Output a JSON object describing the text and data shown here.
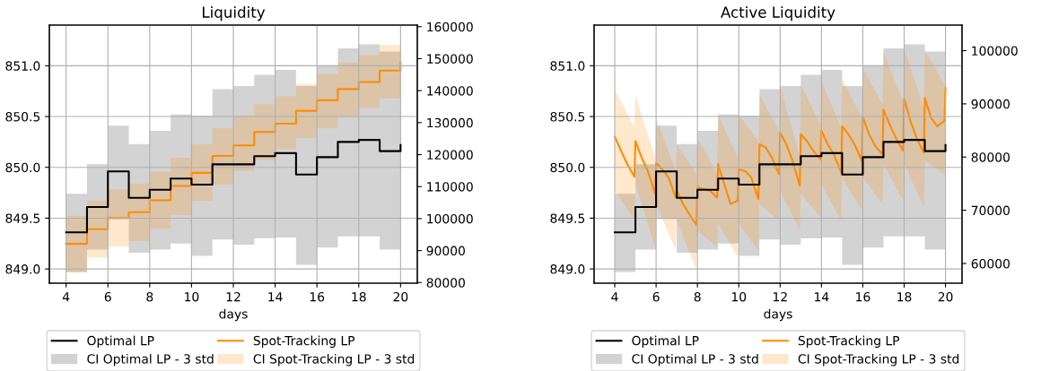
{
  "chart_data": [
    {
      "type": "step",
      "title": "Liquidity",
      "xlabel": "days",
      "xlim": [
        3.2,
        20.8
      ],
      "xticks": [
        4,
        6,
        8,
        10,
        12,
        14,
        16,
        18,
        20
      ],
      "ylim": [
        848.86,
        851.4
      ],
      "yticks": [
        {
          "value": 849,
          "label": "849.0"
        },
        {
          "value": 849.5,
          "label": "849.5"
        },
        {
          "value": 850,
          "label": "850.0"
        },
        {
          "value": 850.5,
          "label": "850.5"
        },
        {
          "value": 851,
          "label": "851.0"
        }
      ],
      "y2lim": [
        79800,
        160500
      ],
      "y2ticks": [
        80000,
        90000,
        100000,
        110000,
        120000,
        130000,
        140000,
        150000,
        160000
      ],
      "grid": true,
      "legend": "bottom",
      "series": [
        {
          "name": "Optimal LP",
          "axis": "y",
          "color": "#000000",
          "x": [
            4,
            5,
            6,
            7,
            8,
            9,
            10,
            11,
            12,
            13,
            14,
            15,
            16,
            17,
            18,
            19,
            20
          ],
          "values": [
            849.36,
            849.61,
            849.96,
            849.7,
            849.78,
            849.89,
            849.83,
            850.03,
            850.03,
            850.11,
            850.14,
            849.93,
            850.1,
            850.25,
            850.27,
            850.16,
            850.22
          ]
        },
        {
          "name": "CI Optimal LP - 3 std",
          "axis": "y",
          "color": "#808080",
          "x": [
            4,
            5,
            6,
            7,
            8,
            9,
            10,
            11,
            12,
            13,
            14,
            15,
            16,
            17,
            18,
            19,
            20
          ],
          "values": [
            null,
            null,
            null,
            null,
            null,
            null,
            null,
            null,
            null,
            null,
            null,
            null,
            null,
            null,
            null,
            null,
            null
          ],
          "lower": [
            848.97,
            849.19,
            849.49,
            849.16,
            849.19,
            849.25,
            849.13,
            849.29,
            849.24,
            849.3,
            849.31,
            849.04,
            849.21,
            849.32,
            849.32,
            849.19,
            849.19
          ],
          "upper": [
            849.74,
            850.03,
            850.41,
            850.23,
            850.36,
            850.52,
            850.51,
            850.77,
            850.8,
            850.91,
            850.96,
            850.8,
            851.0,
            851.17,
            851.21,
            851.14,
            851.14
          ]
        },
        {
          "name": "Spot-Tracking LP",
          "axis": "y2",
          "color": "#ff8c00",
          "x": [
            4,
            5,
            6,
            7,
            8,
            9,
            10,
            11,
            12,
            13,
            14,
            15,
            16,
            17,
            18,
            19,
            20
          ],
          "values": [
            92100,
            96700,
            100200,
            102000,
            105700,
            110200,
            114300,
            119600,
            122900,
            127100,
            129700,
            133700,
            137000,
            140500,
            142700,
            146300,
            148800
          ]
        },
        {
          "name": "CI Spot-Tracking LP - 3 std",
          "axis": "y2",
          "color": "#ff8c00",
          "x": [
            4,
            5,
            6,
            7,
            8,
            9,
            10,
            11,
            12,
            13,
            14,
            15,
            16,
            17,
            18,
            19,
            20
          ],
          "values": [
            null,
            null,
            null,
            null,
            null,
            null,
            null,
            null,
            null,
            null,
            null,
            null,
            null,
            null,
            null,
            null,
            null
          ],
          "lower": [
            83100,
            87800,
            91200,
            93000,
            96800,
            101100,
            105500,
            110600,
            114900,
            118300,
            121700,
            125200,
            128200,
            131800,
            134600,
            137600,
            137600
          ],
          "upper": [
            100900,
            105600,
            109100,
            111000,
            114600,
            119000,
            123200,
            128200,
            132300,
            135700,
            138200,
            142100,
            145200,
            148700,
            151100,
            154300,
            156400
          ]
        }
      ]
    },
    {
      "type": "step",
      "title": "Active Liquidity",
      "xlabel": "days",
      "xlim": [
        3.0,
        20.8
      ],
      "xticks": [
        4,
        6,
        8,
        10,
        12,
        14,
        16,
        18,
        20
      ],
      "ylim": [
        848.86,
        851.4
      ],
      "yticks": [
        {
          "value": 849,
          "label": "849.0"
        },
        {
          "value": 849.5,
          "label": "849.5"
        },
        {
          "value": 850,
          "label": "850.0"
        },
        {
          "value": 850.5,
          "label": "850.5"
        },
        {
          "value": 851,
          "label": "851.0"
        }
      ],
      "y2lim": [
        56300,
        104800
      ],
      "y2ticks": [
        60000,
        70000,
        80000,
        90000,
        100000
      ],
      "grid": true,
      "legend": "bottom",
      "series": [
        {
          "name": "Optimal LP",
          "axis": "y",
          "color": "#000000",
          "x": [
            4,
            5,
            6,
            7,
            8,
            9,
            10,
            11,
            12,
            13,
            14,
            15,
            16,
            17,
            18,
            19,
            20
          ],
          "values": [
            849.36,
            849.61,
            849.96,
            849.7,
            849.78,
            849.89,
            849.83,
            850.03,
            850.03,
            850.11,
            850.14,
            849.93,
            850.1,
            850.25,
            850.27,
            850.16,
            850.22
          ]
        },
        {
          "name": "CI Optimal LP - 3 std",
          "axis": "y",
          "color": "#808080",
          "x": [
            4,
            5,
            6,
            7,
            8,
            9,
            10,
            11,
            12,
            13,
            14,
            15,
            16,
            17,
            18,
            19,
            20
          ],
          "values": [
            null,
            null,
            null,
            null,
            null,
            null,
            null,
            null,
            null,
            null,
            null,
            null,
            null,
            null,
            null,
            null,
            null
          ],
          "lower": [
            848.97,
            849.19,
            849.49,
            849.16,
            849.19,
            849.25,
            849.13,
            849.29,
            849.24,
            849.3,
            849.31,
            849.04,
            849.21,
            849.32,
            849.32,
            849.19,
            849.19
          ],
          "upper": [
            849.74,
            850.03,
            850.41,
            850.23,
            850.36,
            850.52,
            850.51,
            850.77,
            850.8,
            850.91,
            850.96,
            850.8,
            851.0,
            851.17,
            851.21,
            851.14,
            851.14
          ]
        },
        {
          "name": "Spot-Tracking LP",
          "type": "line",
          "axis": "y2",
          "color": "#ff8c00",
          "x": [
            4,
            4.3,
            4.6,
            4.95,
            5,
            5.3,
            5.6,
            5.95,
            6,
            6.3,
            6.6,
            6.95,
            7,
            7.3,
            7.6,
            7.95,
            8,
            8.3,
            8.6,
            8.95,
            9,
            9.3,
            9.6,
            9.95,
            10,
            10.3,
            10.6,
            10.95,
            11,
            11.3,
            11.6,
            11.95,
            12,
            12.3,
            12.6,
            12.95,
            13,
            13.3,
            13.6,
            13.95,
            14,
            14.3,
            14.6,
            14.95,
            15,
            15.3,
            15.6,
            15.95,
            16,
            16.3,
            16.6,
            16.95,
            17,
            17.3,
            17.6,
            17.95,
            18,
            18.3,
            18.6,
            18.95,
            19,
            19.3,
            19.6,
            19.95,
            20
          ],
          "values": [
            83800,
            81200,
            78700,
            76300,
            83000,
            79900,
            77400,
            73100,
            78900,
            77700,
            76200,
            72400,
            73700,
            71200,
            69300,
            67200,
            74300,
            74000,
            73700,
            72400,
            78700,
            74900,
            71200,
            71800,
            77700,
            77400,
            76200,
            72100,
            82400,
            81800,
            79900,
            76800,
            84600,
            82400,
            79300,
            74600,
            84300,
            83000,
            81200,
            79600,
            85000,
            82400,
            80500,
            77100,
            85800,
            84300,
            82400,
            79300,
            87500,
            84300,
            82100,
            80500,
            88900,
            86100,
            83600,
            81200,
            91000,
            86800,
            83600,
            80800,
            91100,
            87400,
            85800,
            86800,
            93000
          ]
        },
        {
          "name": "CI Spot-Tracking LP - 3 std",
          "type": "area",
          "axis": "y2",
          "color": "#ff8c00",
          "x": [
            4,
            4.3,
            4.6,
            4.95,
            5,
            5.3,
            5.6,
            5.95,
            6,
            6.3,
            6.6,
            6.95,
            7,
            7.3,
            7.6,
            7.95,
            8,
            8.3,
            8.6,
            8.95,
            9,
            9.3,
            9.6,
            9.95,
            10,
            10.3,
            10.6,
            10.95,
            11,
            11.3,
            11.6,
            11.95,
            12,
            12.3,
            12.6,
            12.95,
            13,
            13.3,
            13.6,
            13.95,
            14,
            14.3,
            14.6,
            14.95,
            15,
            15.3,
            15.6,
            15.95,
            16,
            16.3,
            16.6,
            16.95,
            17,
            17.3,
            17.6,
            17.95,
            18,
            18.3,
            18.6,
            18.95,
            19,
            19.3,
            19.6,
            19.95,
            20
          ],
          "values": [
            null,
            null,
            null,
            null,
            null,
            null,
            null,
            null,
            null,
            null,
            null,
            null,
            null,
            null,
            null,
            null,
            null,
            null,
            null,
            null,
            null,
            null,
            null,
            null,
            null,
            null,
            null,
            null,
            null,
            null,
            null,
            null,
            null,
            null,
            null,
            null,
            null,
            null,
            null,
            null,
            null,
            null,
            null,
            null,
            null,
            null,
            null,
            null,
            null,
            null,
            null,
            null,
            null,
            null,
            null,
            null,
            null,
            null,
            null,
            null,
            null,
            null,
            null,
            null,
            null
          ],
          "upper": [
            92700,
            90400,
            88200,
            85500,
            91700,
            87900,
            84300,
            79900,
            87400,
            84200,
            81100,
            77400,
            82400,
            80600,
            78900,
            76800,
            83600,
            81500,
            79300,
            76800,
            88000,
            85400,
            82900,
            79900,
            88000,
            86400,
            84900,
            83000,
            91700,
            89500,
            87400,
            84900,
            93600,
            89200,
            85000,
            79900,
            93600,
            91200,
            88900,
            86100,
            94200,
            91400,
            88700,
            85500,
            94800,
            92400,
            90100,
            87400,
            96700,
            94500,
            92400,
            89900,
            99800,
            96800,
            93900,
            90500,
            100400,
            96900,
            93400,
            89200,
            100100,
            98000,
            96000,
            93600,
            102300
          ],
          "lower": [
            73700,
            71900,
            70200,
            68100,
            74900,
            71200,
            67500,
            63100,
            71200,
            68400,
            65700,
            62500,
            68100,
            65100,
            62200,
            58800,
            66200,
            65200,
            64300,
            63100,
            67500,
            65500,
            63500,
            61200,
            67500,
            65900,
            64300,
            62500,
            71200,
            70200,
            69200,
            68100,
            73700,
            71300,
            69000,
            66200,
            73100,
            71700,
            70300,
            68700,
            74900,
            72700,
            70600,
            68100,
            76200,
            74200,
            72300,
            70000,
            76200,
            74600,
            73000,
            71200,
            78700,
            76500,
            74400,
            71800,
            78700,
            76100,
            73600,
            70600,
            79300,
            78500,
            77700,
            76800,
            79900
          ]
        }
      ]
    }
  ]
}
